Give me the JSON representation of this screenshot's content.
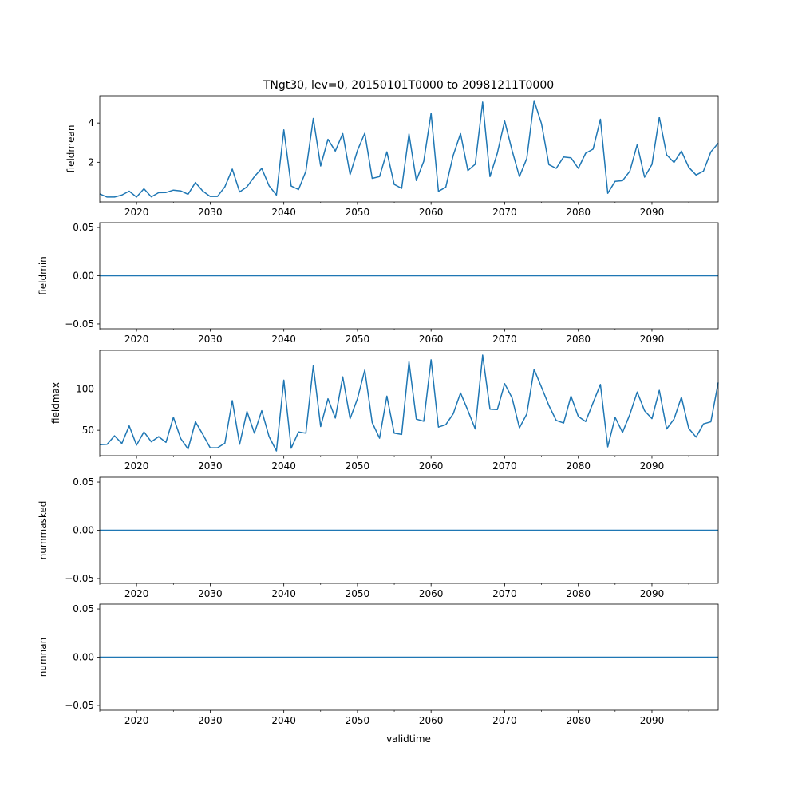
{
  "chart_data": {
    "type": "line",
    "title": "TNgt30, lev=0, 20150101T0000 to 20981211T0000",
    "xlabel": "validtime",
    "x_start": 2015,
    "x_step": 1,
    "xlim": [
      2015,
      2099
    ],
    "xticks": [
      2020,
      2030,
      2040,
      2050,
      2060,
      2070,
      2080,
      2090
    ],
    "xticklabels": [
      "2020",
      "2030",
      "2040",
      "2050",
      "2060",
      "2070",
      "2080",
      "2090"
    ],
    "x_minor_step": 5,
    "line_color": "#1f77b4",
    "grid": false,
    "panels": [
      {
        "ylabel": "fieldmean",
        "ylim": [
          -0.02,
          5.39
        ],
        "yticks": [
          2,
          4
        ],
        "yticklabels": [
          "2",
          "4"
        ],
        "values": [
          0.39,
          0.23,
          0.23,
          0.33,
          0.53,
          0.23,
          0.65,
          0.24,
          0.45,
          0.46,
          0.58,
          0.54,
          0.37,
          0.97,
          0.53,
          0.26,
          0.26,
          0.75,
          1.65,
          0.49,
          0.75,
          1.27,
          1.69,
          0.8,
          0.33,
          3.65,
          0.79,
          0.61,
          1.54,
          4.23,
          1.81,
          3.17,
          2.57,
          3.46,
          1.37,
          2.6,
          3.48,
          1.18,
          1.27,
          2.53,
          0.87,
          0.67,
          3.44,
          1.07,
          2.05,
          4.5,
          0.52,
          0.73,
          2.35,
          3.46,
          1.58,
          1.9,
          5.07,
          1.27,
          2.46,
          4.1,
          2.6,
          1.27,
          2.19,
          5.14,
          3.96,
          1.88,
          1.69,
          2.27,
          2.23,
          1.69,
          2.46,
          2.67,
          4.19,
          0.42,
          1.03,
          1.06,
          1.55,
          2.9,
          1.24,
          1.89,
          4.29,
          2.38,
          1.99,
          2.57,
          1.74,
          1.35,
          1.55,
          2.53,
          2.97
        ]
      },
      {
        "ylabel": "fieldmin",
        "ylim": [
          -0.055,
          0.055
        ],
        "yticks": [
          -0.05,
          0,
          0.05
        ],
        "yticklabels": [
          "−0.05",
          "0.00",
          "0.05"
        ],
        "constant_value": 0
      },
      {
        "ylabel": "fieldmax",
        "ylim": [
          19.2,
          146.8
        ],
        "yticks": [
          50,
          100
        ],
        "yticklabels": [
          "50",
          "100"
        ],
        "values": [
          32.4,
          33,
          43.3,
          34,
          55.4,
          32,
          48,
          36,
          42.3,
          35.3,
          65.7,
          40,
          27.2,
          60.3,
          44.9,
          28.8,
          28.8,
          34.3,
          85.9,
          33,
          72.8,
          46.5,
          73.7,
          42.3,
          25,
          110.6,
          28.2,
          48,
          46.5,
          128.2,
          54.5,
          88.1,
          64.7,
          114.7,
          64.1,
          88.1,
          122.8,
          59.3,
          40.4,
          91.3,
          46.5,
          44.9,
          133,
          63.5,
          60.9,
          135.3,
          53.8,
          56.7,
          69.9,
          95.2,
          74,
          51.6,
          141,
          75.6,
          75,
          106.4,
          89.1,
          52.9,
          69.6,
          123.7,
          101.9,
          80.1,
          61.9,
          58.7,
          91.3,
          66.7,
          60.6,
          83.3,
          105.4,
          29.8,
          65.7,
          47.4,
          69.2,
          96.2,
          73.7,
          64.1,
          98.4,
          51.6,
          63.5,
          90.1,
          52.2,
          41.7,
          57.7,
          60.3,
          107.7
        ]
      },
      {
        "ylabel": "nummasked",
        "ylim": [
          -0.055,
          0.055
        ],
        "yticks": [
          -0.05,
          0,
          0.05
        ],
        "yticklabels": [
          "−0.05",
          "0.00",
          "0.05"
        ],
        "constant_value": 0
      },
      {
        "ylabel": "numnan",
        "ylim": [
          -0.055,
          0.055
        ],
        "yticks": [
          -0.05,
          0,
          0.05
        ],
        "yticklabels": [
          "−0.05",
          "0.00",
          "0.05"
        ],
        "constant_value": 0
      }
    ]
  }
}
